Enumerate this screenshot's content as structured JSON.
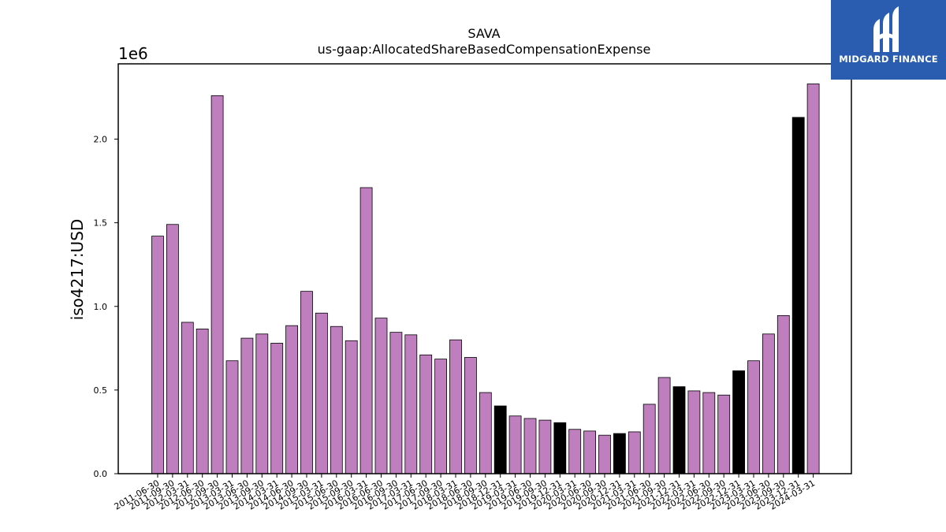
{
  "logo": {
    "text": "MIDGARD FINANCE",
    "icon": "midgard-logo-icon",
    "background": "#2a5cb0"
  },
  "chart_data": {
    "type": "bar",
    "title": "SAVA",
    "subtitle": "us-gaap:AllocatedShareBasedCompensationExpense",
    "ylabel": "iso4217:USD",
    "xlabel": "",
    "y_offset_label": "1e6",
    "ylim": [
      0,
      2450000
    ],
    "yticks": [
      0,
      500000,
      1000000,
      1500000,
      2000000
    ],
    "ytick_labels": [
      "0.0",
      "0.5",
      "1.0",
      "1.5",
      "2.0"
    ],
    "grid": false,
    "colors": {
      "default": "#bf7fbf",
      "highlight": "#000000",
      "edge": "#000000"
    },
    "categories": [
      "2011-06-30",
      "2011-09-30",
      "2012-03-31",
      "2012-06-30",
      "2012-09-30",
      "2013-03-31",
      "2013-06-30",
      "2013-09-30",
      "2014-03-31",
      "2014-06-30",
      "2014-09-30",
      "2015-03-31",
      "2015-06-30",
      "2015-09-30",
      "2016-03-31",
      "2016-06-30",
      "2016-09-30",
      "2017-03-31",
      "2017-06-30",
      "2017-09-30",
      "2018-03-31",
      "2018-06-30",
      "2018-09-30",
      "2018-12-31",
      "2019-03-31",
      "2019-06-30",
      "2019-09-30",
      "2019-12-31",
      "2020-03-31",
      "2020-06-30",
      "2020-09-30",
      "2020-12-31",
      "2021-03-31",
      "2021-06-30",
      "2021-09-30",
      "2021-12-31",
      "2022-03-31",
      "2022-06-30",
      "2022-09-30",
      "2022-12-31",
      "2023-03-31",
      "2023-06-30",
      "2023-09-30",
      "2023-12-31",
      "2024-03-31"
    ],
    "values": [
      1420000,
      1490000,
      905000,
      865000,
      2260000,
      675000,
      810000,
      835000,
      780000,
      885000,
      1090000,
      960000,
      880000,
      795000,
      1710000,
      930000,
      845000,
      830000,
      710000,
      685000,
      800000,
      695000,
      485000,
      405000,
      345000,
      330000,
      320000,
      305000,
      265000,
      255000,
      230000,
      240000,
      250000,
      415000,
      575000,
      520000,
      495000,
      485000,
      470000,
      615000,
      675000,
      835000,
      945000,
      2130000,
      2330000
    ],
    "highlight": [
      false,
      false,
      false,
      false,
      false,
      false,
      false,
      false,
      false,
      false,
      false,
      false,
      false,
      false,
      false,
      false,
      false,
      false,
      false,
      false,
      false,
      false,
      false,
      true,
      false,
      false,
      false,
      true,
      false,
      false,
      false,
      true,
      false,
      false,
      false,
      true,
      false,
      false,
      false,
      true,
      false,
      false,
      false,
      true,
      false
    ]
  }
}
